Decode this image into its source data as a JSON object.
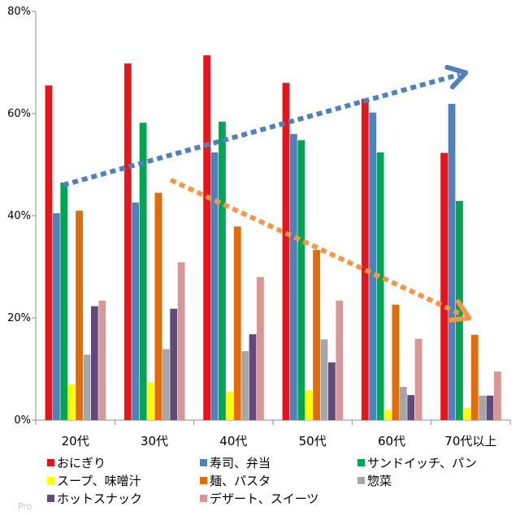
{
  "chart_data": {
    "type": "bar",
    "title": "",
    "xlabel": "",
    "ylabel": "",
    "ylim": [
      0,
      80
    ],
    "yticks": [
      0,
      20,
      40,
      60,
      80
    ],
    "ytick_labels": [
      "0%",
      "20%",
      "40%",
      "60%",
      "80%"
    ],
    "grid": false,
    "legend_position": "bottom",
    "categories": [
      "20代",
      "30代",
      "40代",
      "50代",
      "60代",
      "70代以上"
    ],
    "series": [
      {
        "name": "おにぎり",
        "color": "#e8141b",
        "values": [
          65.5,
          69.8,
          71.4,
          66.0,
          62.9,
          52.3
        ]
      },
      {
        "name": "寿司、弁当",
        "color": "#4f81bd",
        "values": [
          40.5,
          42.6,
          52.4,
          56.0,
          60.2,
          61.9
        ]
      },
      {
        "name": "サンドイッチ、パン",
        "color": "#00a651",
        "values": [
          46.5,
          58.2,
          58.4,
          54.8,
          52.4,
          42.9
        ]
      },
      {
        "name": "スープ、味噌汁",
        "color": "#ffff00",
        "values": [
          7.0,
          7.4,
          5.6,
          5.9,
          2.0,
          2.4
        ]
      },
      {
        "name": "麺、パスタ",
        "color": "#e36c09",
        "values": [
          41.0,
          44.5,
          37.9,
          33.3,
          22.6,
          16.7
        ]
      },
      {
        "name": "惣菜",
        "color": "#a6a6a6",
        "values": [
          12.8,
          13.9,
          13.5,
          15.8,
          6.5,
          4.8
        ]
      },
      {
        "name": "ホットスナック",
        "color": "#604a7b",
        "values": [
          22.3,
          21.8,
          16.8,
          11.3,
          4.9,
          4.8
        ]
      },
      {
        "name": "デザート、スイーツ",
        "color": "#d99694",
        "values": [
          23.4,
          30.9,
          28.0,
          23.4,
          15.9,
          9.5
        ]
      }
    ],
    "annotations": [
      {
        "type": "dotted-arrow",
        "direction": "up-right",
        "color": "#4f81bd",
        "from": {
          "category": "20代",
          "value": 46
        },
        "to": {
          "category": "70代以上",
          "value": 68
        }
      },
      {
        "type": "dotted-arrow",
        "direction": "down-right",
        "color": "#f79646",
        "from": {
          "category": "30代",
          "value": 47
        },
        "to": {
          "category": "70代以上",
          "value": 20
        }
      }
    ]
  },
  "watermark": "Pro"
}
